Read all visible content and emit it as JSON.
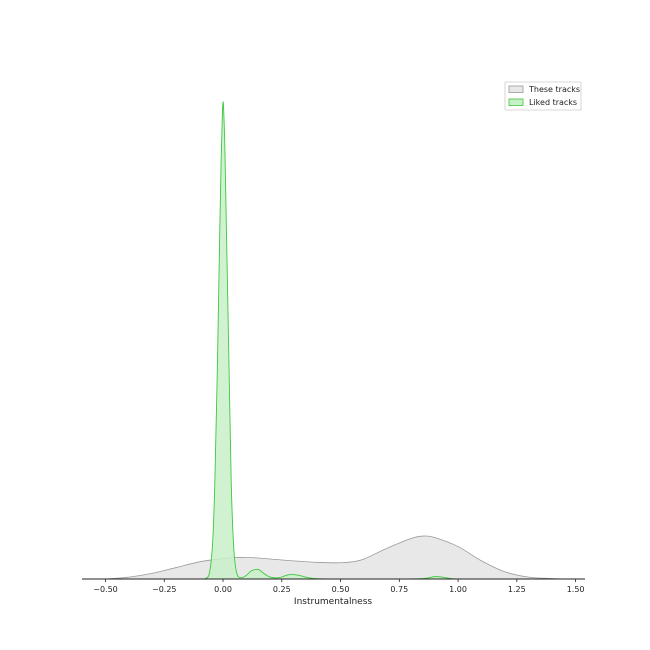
{
  "chart_data": {
    "type": "area",
    "title": "",
    "xlabel": "Instrumentalness",
    "ylabel": "",
    "xlim": [
      -0.6,
      1.54
    ],
    "ylim": [
      0,
      1.0
    ],
    "xticks": [
      -0.5,
      -0.25,
      0.0,
      0.25,
      0.5,
      0.75,
      1.0,
      1.25,
      1.5
    ],
    "xtick_labels": [
      "−0.50",
      "−0.25",
      "0.00",
      "0.25",
      "0.50",
      "0.75",
      "1.00",
      "1.25",
      "1.50"
    ],
    "grid": false,
    "legend_position": "top-right",
    "series": [
      {
        "name": "These tracks",
        "fill": "#e8e8e8",
        "stroke": "#9a9a9a",
        "x": [
          -0.5,
          -0.4,
          -0.3,
          -0.2,
          -0.1,
          0.0,
          0.05,
          0.1,
          0.15,
          0.2,
          0.3,
          0.4,
          0.5,
          0.55,
          0.6,
          0.7,
          0.8,
          0.85,
          0.9,
          1.0,
          1.1,
          1.2,
          1.3,
          1.4,
          1.45
        ],
        "y": [
          0.0,
          0.004,
          0.012,
          0.024,
          0.036,
          0.043,
          0.045,
          0.045,
          0.044,
          0.042,
          0.038,
          0.035,
          0.034,
          0.036,
          0.042,
          0.065,
          0.085,
          0.09,
          0.087,
          0.068,
          0.038,
          0.015,
          0.004,
          0.001,
          0.0
        ]
      },
      {
        "name": "Liked tracks",
        "fill": "#c8f0c8",
        "stroke": "#3cc83c",
        "x": [
          -0.08,
          -0.06,
          -0.045,
          -0.035,
          -0.025,
          -0.015,
          -0.008,
          -0.003,
          0.0,
          0.003,
          0.008,
          0.015,
          0.025,
          0.035,
          0.045,
          0.055,
          0.065,
          0.08,
          0.1,
          0.12,
          0.15,
          0.17,
          0.2,
          0.24,
          0.28,
          0.32,
          0.36,
          0.4,
          0.5,
          0.7,
          0.85,
          0.9,
          0.93,
          0.97,
          1.0
        ],
        "y": [
          0.0,
          0.008,
          0.07,
          0.2,
          0.42,
          0.7,
          0.88,
          0.97,
          1.0,
          0.98,
          0.9,
          0.72,
          0.46,
          0.2,
          0.07,
          0.02,
          0.005,
          0.003,
          0.008,
          0.017,
          0.02,
          0.013,
          0.004,
          0.003,
          0.009,
          0.008,
          0.003,
          0.0005,
          0.0,
          0.0,
          0.001,
          0.005,
          0.004,
          0.0008,
          0.0
        ]
      }
    ]
  }
}
